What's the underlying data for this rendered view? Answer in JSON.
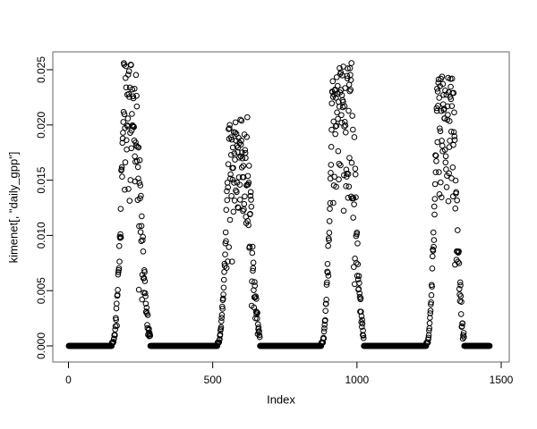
{
  "figure": {
    "background_color": "#ffffff",
    "foreground_color": "#000000",
    "box_color": "#666666"
  },
  "chart_data": {
    "type": "scatter",
    "title": "",
    "xlabel": "Index",
    "ylabel": "kimenet[, \"daily_gpp\"]",
    "xlim": [
      0,
      1500
    ],
    "ylim": [
      0,
      0.025
    ],
    "x_ticks": [
      0,
      500,
      1000,
      1500
    ],
    "x_tick_labels": [
      "0",
      "500",
      "1000",
      "1500"
    ],
    "y_ticks": [
      0,
      0.005,
      0.01,
      0.015,
      0.02,
      0.025
    ],
    "y_tick_labels": [
      "0.000",
      "0.005",
      "0.010",
      "0.015",
      "0.020",
      "0.025"
    ],
    "grid": false,
    "legend": false,
    "marker": {
      "shape": "open-circle",
      "color": "#000000",
      "radius": 2.8,
      "stroke_width": 1
    },
    "n_points": 1460,
    "baseline_value": 0,
    "y_max_observed": 0.0255,
    "seed": 42,
    "zero_segments": [
      [
        1,
        150
      ],
      [
        284,
        516
      ],
      [
        664,
        876
      ],
      [
        1024,
        1240
      ],
      [
        1372,
        1460
      ]
    ],
    "seasons": [
      {
        "start": 150,
        "rise_end": 192,
        "top_end": 230,
        "end": 284,
        "max": 0.0255
      },
      {
        "start": 516,
        "rise_end": 556,
        "top_end": 618,
        "end": 664,
        "max": 0.0205
      },
      {
        "start": 876,
        "rise_end": 916,
        "top_end": 980,
        "end": 1024,
        "max": 0.0253
      },
      {
        "start": 1240,
        "rise_end": 1278,
        "top_end": 1330,
        "end": 1372,
        "max": 0.0244
      }
    ],
    "description": "Daily GPP time series over ~4 years: four seasonal peaks of scattered open circles separated by flat winter baselines at exactly zero."
  }
}
